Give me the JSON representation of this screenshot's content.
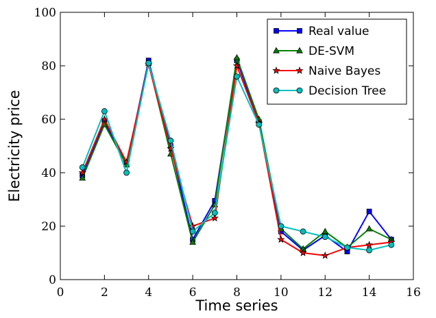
{
  "chart_data": {
    "type": "line",
    "title": "",
    "xlabel": "Time series",
    "ylabel": "Electricity price",
    "xlim": [
      0,
      16
    ],
    "ylim": [
      0,
      100
    ],
    "xticks": [
      0,
      2,
      4,
      6,
      8,
      10,
      12,
      14,
      16
    ],
    "yticks": [
      0,
      20,
      40,
      60,
      80,
      100
    ],
    "x_tick_labels": [
      "0",
      "2",
      "4",
      "6",
      "8",
      "10",
      "12",
      "14",
      "16"
    ],
    "y_tick_labels": [
      "0",
      "20",
      "40",
      "60",
      "80",
      "100"
    ],
    "grid": false,
    "legend_position": "top-right",
    "x": [
      1,
      2,
      3,
      4,
      5,
      6,
      7,
      8,
      9,
      10,
      11,
      12,
      13,
      14,
      15
    ],
    "series": [
      {
        "name": "Real value",
        "color": "#0000ff",
        "marker": "square",
        "values": [
          39,
          59,
          43,
          82,
          50,
          15,
          29.5,
          82,
          59,
          18,
          11,
          16.5,
          10.5,
          25.5,
          15
        ]
      },
      {
        "name": "DE-SVM",
        "color": "#008000",
        "marker": "triangle",
        "values": [
          38,
          58,
          43,
          81,
          47,
          14,
          28,
          83,
          60,
          19,
          11.5,
          18,
          12,
          19,
          15
        ]
      },
      {
        "name": "Naive Bayes",
        "color": "#ff0000",
        "marker": "star",
        "values": [
          40,
          60,
          44,
          80.5,
          49,
          20,
          23,
          80,
          58.5,
          15,
          10,
          9,
          12,
          13,
          14
        ]
      },
      {
        "name": "Decision Tree",
        "color": "#00bfbf",
        "marker": "circle",
        "values": [
          42,
          63,
          40,
          81,
          52,
          18,
          25,
          76,
          58,
          20,
          18,
          16,
          12,
          11,
          13
        ]
      }
    ]
  }
}
